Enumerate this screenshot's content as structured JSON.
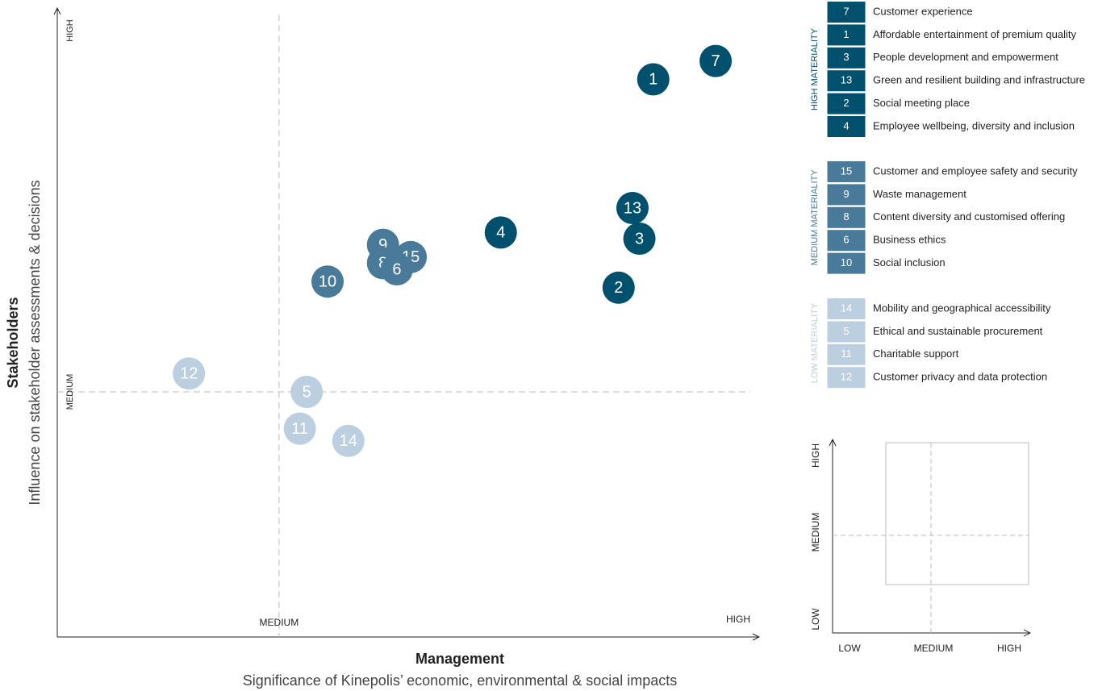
{
  "chart_data": {
    "type": "scatter",
    "x_label": "Management",
    "x_sublabel": "Significance of Kinepolis’ economic, environmental & social impacts",
    "y_label": "Stakeholders",
    "y_sublabel": "Influence on stakeholder assessments & decisions",
    "xlim": [
      0,
      100
    ],
    "ylim": [
      0,
      100
    ],
    "xticks": [
      {
        "value": 32,
        "label": "MEDIUM"
      },
      {
        "value": 100,
        "label": "HIGH"
      }
    ],
    "yticks": [
      {
        "value": 40,
        "label": "MEDIUM"
      },
      {
        "value": 100,
        "label": "HIGH"
      }
    ],
    "series": [
      {
        "name": "HIGH MATERIALITY",
        "color": "#00506e",
        "text_color": "#ffffff",
        "labels": [
          "7",
          "1",
          "3",
          "13",
          "2",
          "4"
        ],
        "descriptions": [
          "Customer experience",
          "Affordable entertainment of premium quality",
          "People development and empowerment",
          "Green and resilient building and infrastructure",
          "Social meeting place",
          "Employee wellbeing, diversity and inclusion"
        ],
        "x": [
          95,
          86,
          84,
          83,
          81,
          64
        ],
        "y": [
          94,
          91,
          65,
          70,
          57,
          66
        ]
      },
      {
        "name": "MEDIUM MATERIALITY",
        "color": "#4a7a9a",
        "text_color": "#ffffff",
        "labels": [
          "15",
          "9",
          "8",
          "6",
          "10"
        ],
        "descriptions": [
          "Customer and employee safety and security",
          "Waste management",
          "Content diversity and customised offering",
          "Business ethics",
          "Social inclusion"
        ],
        "x": [
          51,
          47,
          47,
          49,
          39
        ],
        "y": [
          62,
          64,
          61,
          60,
          58
        ]
      },
      {
        "name": "LOW MATERIALITY",
        "color": "#bccfe0",
        "text_color": "#ffffff",
        "labels": [
          "14",
          "5",
          "11",
          "12"
        ],
        "descriptions": [
          "Mobility and geographical accessibility",
          "Ethical and sustainable procurement",
          "Charitable support",
          "Customer privacy and data protection"
        ],
        "x": [
          42,
          36,
          35,
          19
        ],
        "y": [
          32,
          40,
          34,
          43
        ]
      }
    ],
    "key": {
      "xticks": [
        "LOW",
        "MEDIUM",
        "HIGH"
      ],
      "yticks": [
        "LOW",
        "MEDIUM",
        "HIGH"
      ]
    }
  }
}
